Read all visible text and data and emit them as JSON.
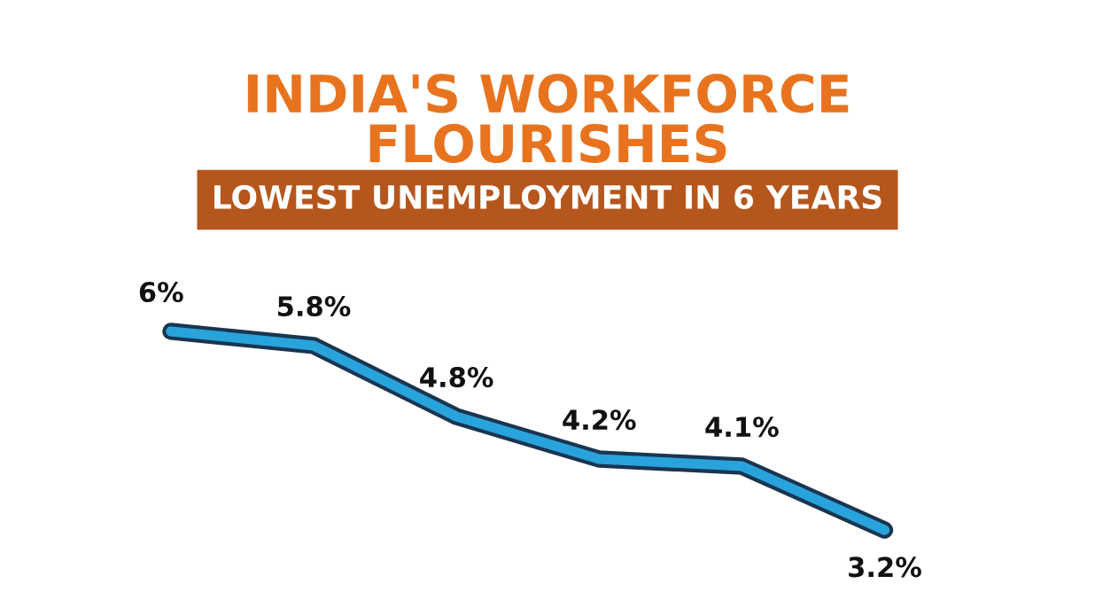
{
  "chart_data": {
    "type": "line",
    "title": "INDIA'S WORKFORCE\nFLOURISHES",
    "subtitle": "LOWEST UNEMPLOYMENT IN 6 YEARS",
    "categories": [
      null,
      null,
      null,
      null,
      null,
      null
    ],
    "series": [
      {
        "color": "#29a3dc",
        "values": [
          6,
          5.8,
          4.8,
          4.2,
          4.1,
          3.2
        ],
        "value_labels": [
          "6%",
          "5.8%",
          "4.8%",
          "4.2%",
          "4.1%",
          "3.2%"
        ]
      }
    ],
    "marker": "none",
    "line_style": "solid"
  }
}
